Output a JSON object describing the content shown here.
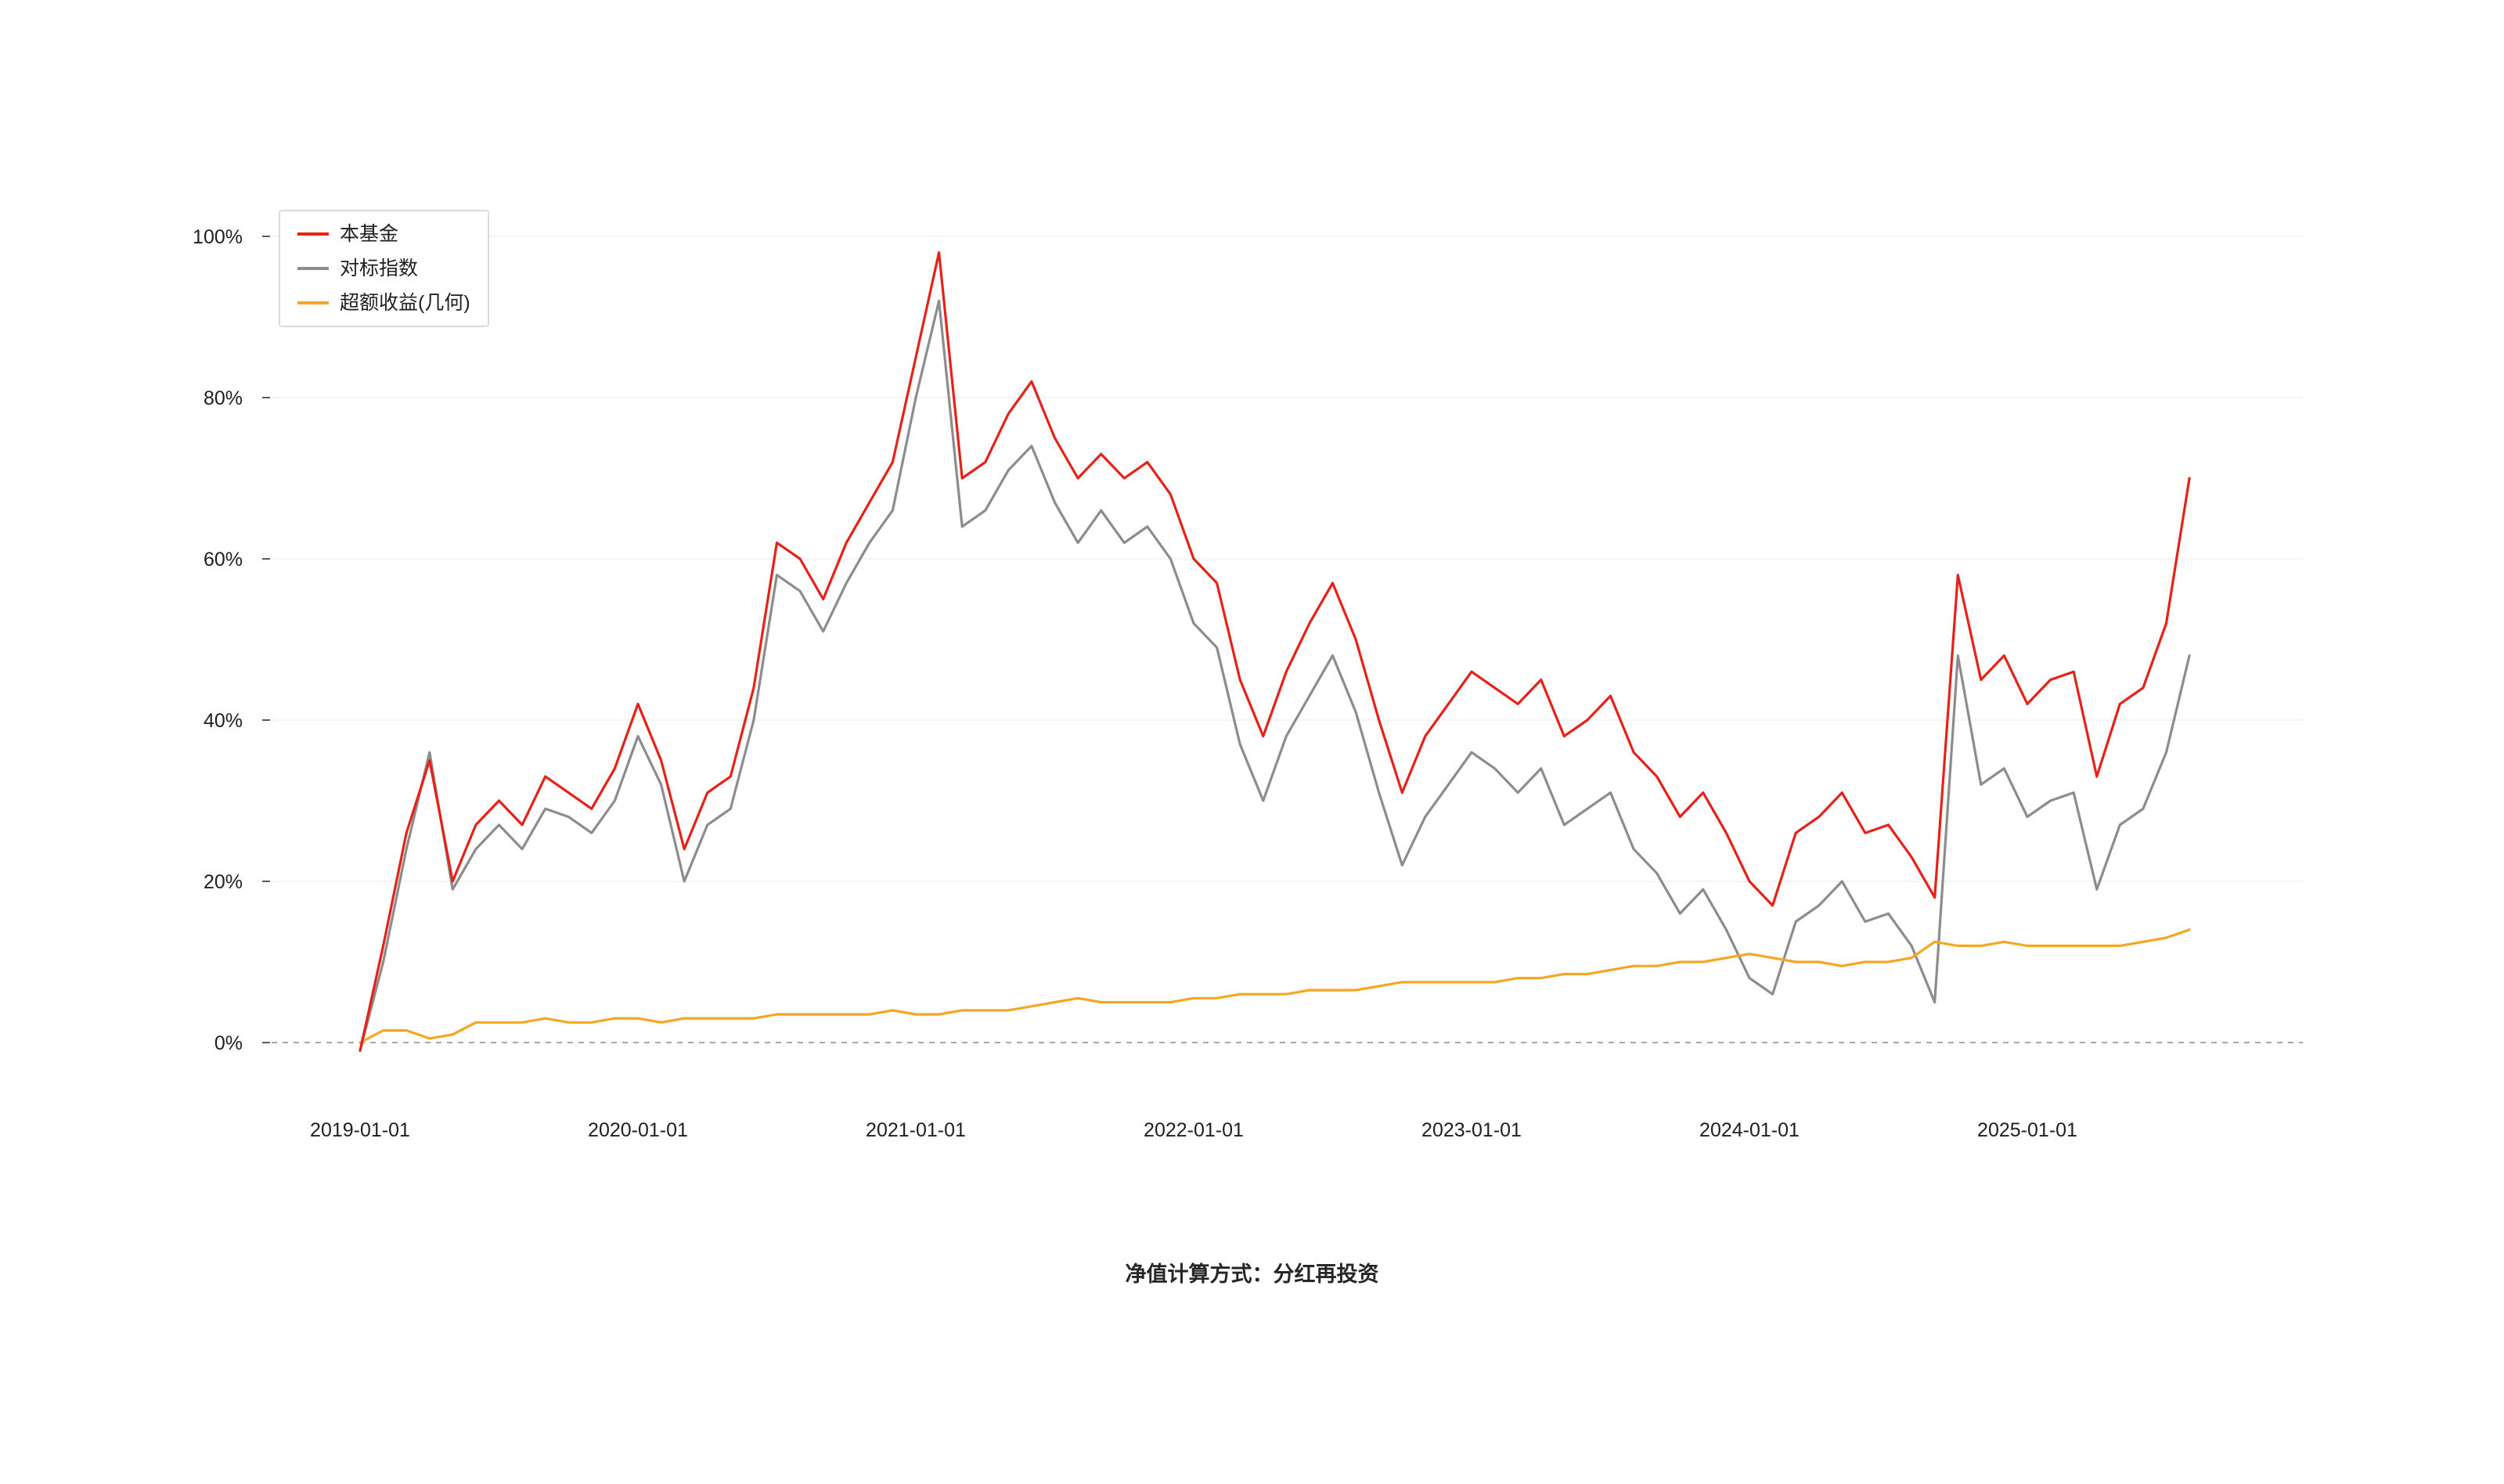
{
  "page": {
    "background": "#ffffff"
  },
  "footer": {
    "note": "净值计算方式：分红再投资"
  },
  "chart_data": {
    "type": "line",
    "title": "",
    "xlabel": "",
    "ylabel": "",
    "legend_position": "top-left",
    "grid": "horizontal-light",
    "zero_line": "dashed",
    "ylim": [
      -5,
      105
    ],
    "y_ticks": [
      0,
      20,
      40,
      60,
      80,
      100
    ],
    "y_tick_labels": [
      "0%",
      "20%",
      "40%",
      "60%",
      "80%",
      "100%"
    ],
    "x_tick_labels": [
      "2019-01-01",
      "2020-01-01",
      "2021-01-01",
      "2022-01-01",
      "2023-01-01",
      "2024-01-01",
      "2025-01-01"
    ],
    "x": [
      "2019-01-01",
      "2019-02-01",
      "2019-03-01",
      "2019-04-01",
      "2019-05-01",
      "2019-06-01",
      "2019-07-01",
      "2019-08-01",
      "2019-09-01",
      "2019-10-01",
      "2019-11-01",
      "2019-12-01",
      "2020-01-01",
      "2020-02-01",
      "2020-03-01",
      "2020-04-01",
      "2020-05-01",
      "2020-06-01",
      "2020-07-01",
      "2020-08-01",
      "2020-09-01",
      "2020-10-01",
      "2020-11-01",
      "2020-12-01",
      "2021-01-01",
      "2021-02-01",
      "2021-03-01",
      "2021-04-01",
      "2021-05-01",
      "2021-06-01",
      "2021-07-01",
      "2021-08-01",
      "2021-09-01",
      "2021-10-01",
      "2021-11-01",
      "2021-12-01",
      "2022-01-01",
      "2022-02-01",
      "2022-03-01",
      "2022-04-01",
      "2022-05-01",
      "2022-06-01",
      "2022-07-01",
      "2022-08-01",
      "2022-09-01",
      "2022-10-01",
      "2022-11-01",
      "2022-12-01",
      "2023-01-01",
      "2023-02-01",
      "2023-03-01",
      "2023-04-01",
      "2023-05-01",
      "2023-06-01",
      "2023-07-01",
      "2023-08-01",
      "2023-09-01",
      "2023-10-01",
      "2023-11-01",
      "2023-12-01",
      "2024-01-01",
      "2024-02-01",
      "2024-03-01",
      "2024-04-01",
      "2024-05-01",
      "2024-06-01",
      "2024-07-01",
      "2024-08-01",
      "2024-09-01",
      "2024-10-01",
      "2024-11-01",
      "2024-12-01",
      "2025-01-01",
      "2025-02-01",
      "2025-03-01",
      "2025-04-01",
      "2025-05-01",
      "2025-06-01",
      "2025-07-01",
      "2025-08-01"
    ],
    "series": [
      {
        "name": "本基金",
        "color": "#e62117",
        "values": [
          -1,
          12,
          26,
          35,
          20,
          27,
          30,
          27,
          33,
          31,
          29,
          34,
          42,
          35,
          24,
          31,
          33,
          44,
          62,
          60,
          55,
          62,
          67,
          72,
          85,
          98,
          70,
          72,
          78,
          82,
          75,
          70,
          73,
          70,
          72,
          68,
          60,
          57,
          45,
          38,
          46,
          52,
          57,
          50,
          40,
          31,
          38,
          42,
          46,
          44,
          42,
          45,
          38,
          40,
          43,
          36,
          33,
          28,
          31,
          26,
          20,
          17,
          26,
          28,
          31,
          26,
          27,
          23,
          18,
          58,
          45,
          48,
          42,
          45,
          46,
          33,
          42,
          44,
          52,
          70
        ]
      },
      {
        "name": "对标指数",
        "color": "#8c8c8c",
        "values": [
          -1,
          10,
          24,
          36,
          19,
          24,
          27,
          24,
          29,
          28,
          26,
          30,
          38,
          32,
          20,
          27,
          29,
          40,
          58,
          56,
          51,
          57,
          62,
          66,
          80,
          92,
          64,
          66,
          71,
          74,
          67,
          62,
          66,
          62,
          64,
          60,
          52,
          49,
          37,
          30,
          38,
          43,
          48,
          41,
          31,
          22,
          28,
          32,
          36,
          34,
          31,
          34,
          27,
          29,
          31,
          24,
          21,
          16,
          19,
          14,
          8,
          6,
          15,
          17,
          20,
          15,
          16,
          12,
          5,
          48,
          32,
          34,
          28,
          30,
          31,
          19,
          27,
          29,
          36,
          48
        ]
      },
      {
        "name": "超额收益(几何)",
        "color": "#f5a623",
        "values": [
          0,
          1.5,
          1.5,
          0.5,
          1,
          2.5,
          2.5,
          2.5,
          3,
          2.5,
          2.5,
          3,
          3,
          2.5,
          3,
          3,
          3,
          3,
          3.5,
          3.5,
          3.5,
          3.5,
          3.5,
          4,
          3.5,
          3.5,
          4,
          4,
          4,
          4.5,
          5,
          5.5,
          5,
          5,
          5,
          5,
          5.5,
          5.5,
          6,
          6,
          6,
          6.5,
          6.5,
          6.5,
          7,
          7.5,
          7.5,
          7.5,
          7.5,
          7.5,
          8,
          8,
          8.5,
          8.5,
          9,
          9.5,
          9.5,
          10,
          10,
          10.5,
          11,
          10.5,
          10,
          10,
          9.5,
          10,
          10,
          10.5,
          12.5,
          12,
          12,
          12.5,
          12,
          12,
          12,
          12,
          12,
          12.5,
          13,
          14
        ]
      }
    ]
  }
}
